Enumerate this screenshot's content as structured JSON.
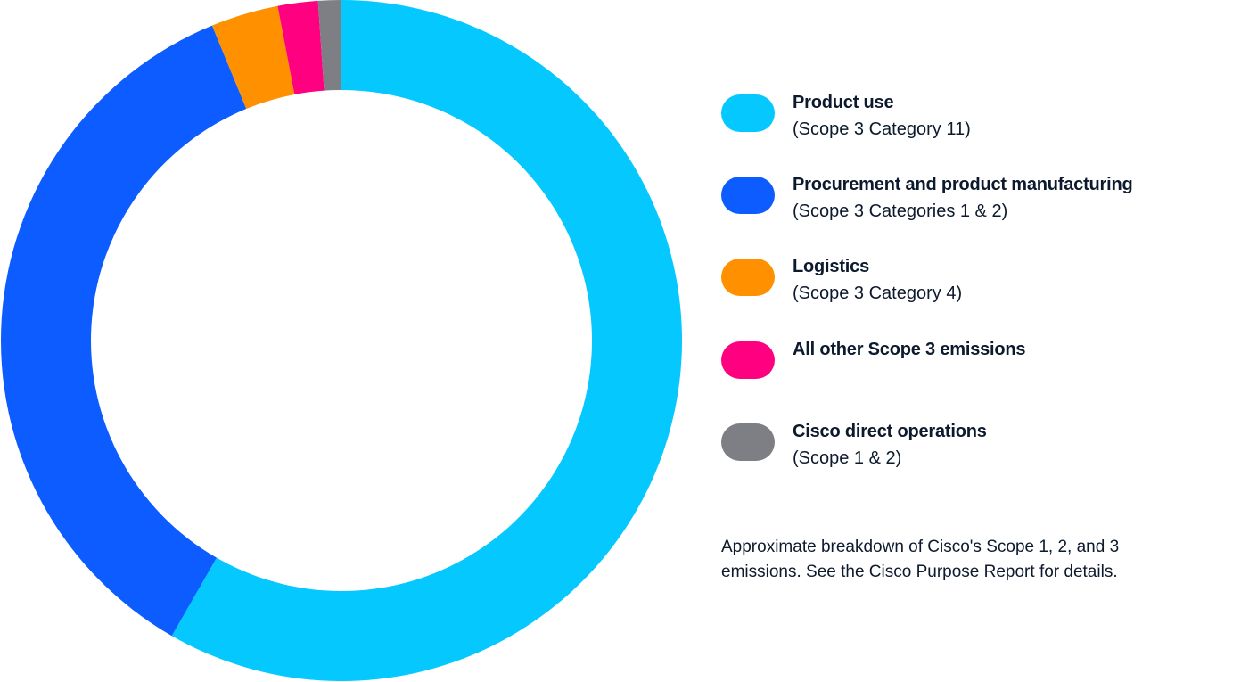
{
  "chart_data": {
    "type": "pie",
    "variant": "donut",
    "title": "",
    "unit": "percent (estimated)",
    "series": [
      {
        "name": "Product use",
        "sub": "(Scope 3 Category 11)",
        "value": 58.3,
        "color": "#05c8ff"
      },
      {
        "name": "Procurement and product manufacturing",
        "sub": "(Scope 3 Categories 1 & 2)",
        "value": 35.5,
        "color": "#0d5cff"
      },
      {
        "name": "Logistics",
        "sub": "(Scope 3 Category 4)",
        "value": 3.2,
        "color": "#ff9000"
      },
      {
        "name": "All other Scope 3 emissions",
        "sub": "",
        "value": 1.9,
        "color": "#ff0080"
      },
      {
        "name": "Cisco direct operations",
        "sub": "(Scope 1 & 2)",
        "value": 1.1,
        "color": "#7e7f84"
      }
    ],
    "start_angle": "top, clockwise",
    "legend_position": "right",
    "note": "Approximate breakdown of Cisco's Scope 1, 2, and 3 emissions. See the Cisco Purpose Report for details."
  }
}
